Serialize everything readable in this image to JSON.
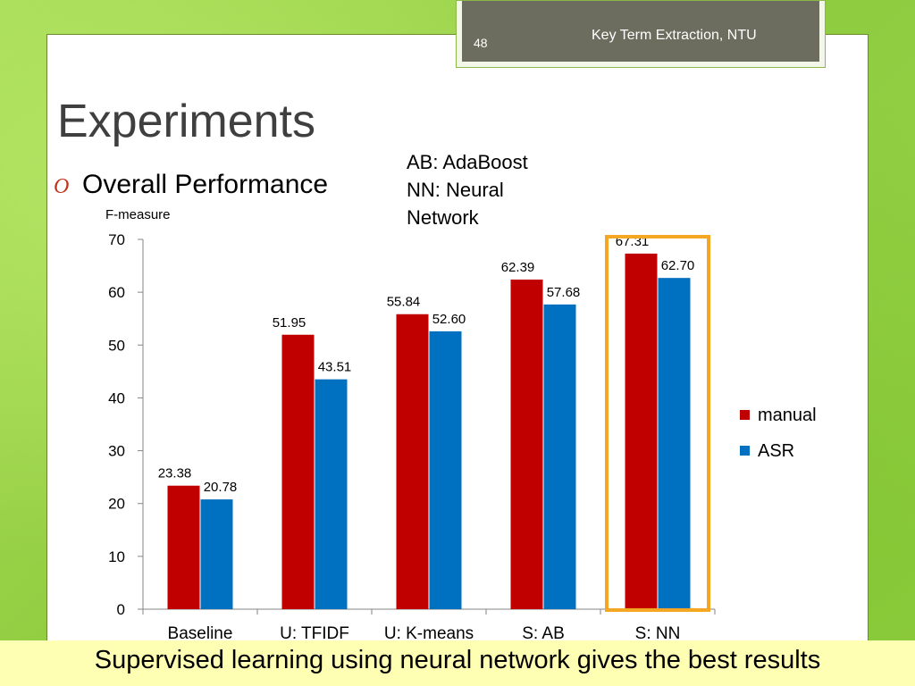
{
  "slide": {
    "page_number": "48",
    "header_title": "Key Term Extraction, NTU",
    "title": "Experiments",
    "bullet_symbol": "O",
    "bullet_text": "Overall Performance",
    "notes": [
      "AB: AdaBoost",
      "NN: Neural",
      "Network"
    ],
    "footer": "Supervised learning using neural network gives the best results",
    "highlight_color": "#f5a623"
  },
  "chart_data": {
    "type": "bar",
    "title": "",
    "xlabel": "",
    "ylabel": "F-measure",
    "ylim": [
      0,
      70
    ],
    "yticks": [
      "0",
      "10",
      "20",
      "30",
      "40",
      "50",
      "60",
      "70"
    ],
    "grid": false,
    "legend_position": "right",
    "categories": [
      "Baseline",
      "U: TFIDF",
      "U: K-means",
      "S: AB",
      "S: NN"
    ],
    "series": [
      {
        "name": "manual",
        "color": "#c00000",
        "values": [
          23.38,
          51.95,
          55.84,
          62.39,
          67.31
        ],
        "labels": [
          "23.38",
          "51.95",
          "55.84",
          "62.39",
          "67.31"
        ]
      },
      {
        "name": "ASR",
        "color": "#0070c0",
        "values": [
          20.78,
          43.51,
          52.6,
          57.68,
          62.7
        ],
        "labels": [
          "20.78",
          "43.51",
          "52.60",
          "57.68",
          "62.70"
        ]
      }
    ],
    "highlighted_category": "S: NN"
  }
}
